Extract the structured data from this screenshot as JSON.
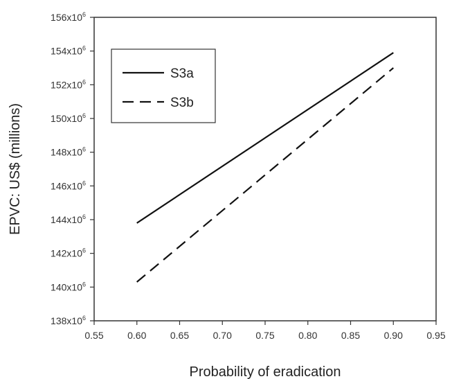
{
  "chart_data": {
    "type": "line",
    "xlabel": "Probability of eradication",
    "ylabel": "EPVC: US$ (millions)",
    "xlim": [
      0.55,
      0.95
    ],
    "ylim": [
      138000000,
      156000000
    ],
    "x_ticks": [
      0.55,
      0.6,
      0.65,
      0.7,
      0.75,
      0.8,
      0.85,
      0.9,
      0.95
    ],
    "x_tick_labels": [
      "0.55",
      "0.60",
      "0.65",
      "0.70",
      "0.75",
      "0.80",
      "0.85",
      "0.90",
      "0.95"
    ],
    "y_ticks": [
      138000000,
      140000000,
      142000000,
      144000000,
      146000000,
      148000000,
      150000000,
      152000000,
      154000000,
      156000000
    ],
    "y_tick_labels": [
      "138x10",
      "140x10",
      "142x10",
      "144x10",
      "146x10",
      "148x10",
      "150x10",
      "152x10",
      "154x10",
      "156x10"
    ],
    "y_tick_exponent": "6",
    "grid": false,
    "legend_position": "top-left",
    "series": [
      {
        "name": "S3a",
        "style": "solid",
        "color": "#111111",
        "x": [
          0.6,
          0.9
        ],
        "y": [
          143800000,
          153900000
        ]
      },
      {
        "name": "S3b",
        "style": "dashed",
        "color": "#111111",
        "x": [
          0.6,
          0.9
        ],
        "y": [
          140300000,
          153000000
        ]
      }
    ]
  }
}
